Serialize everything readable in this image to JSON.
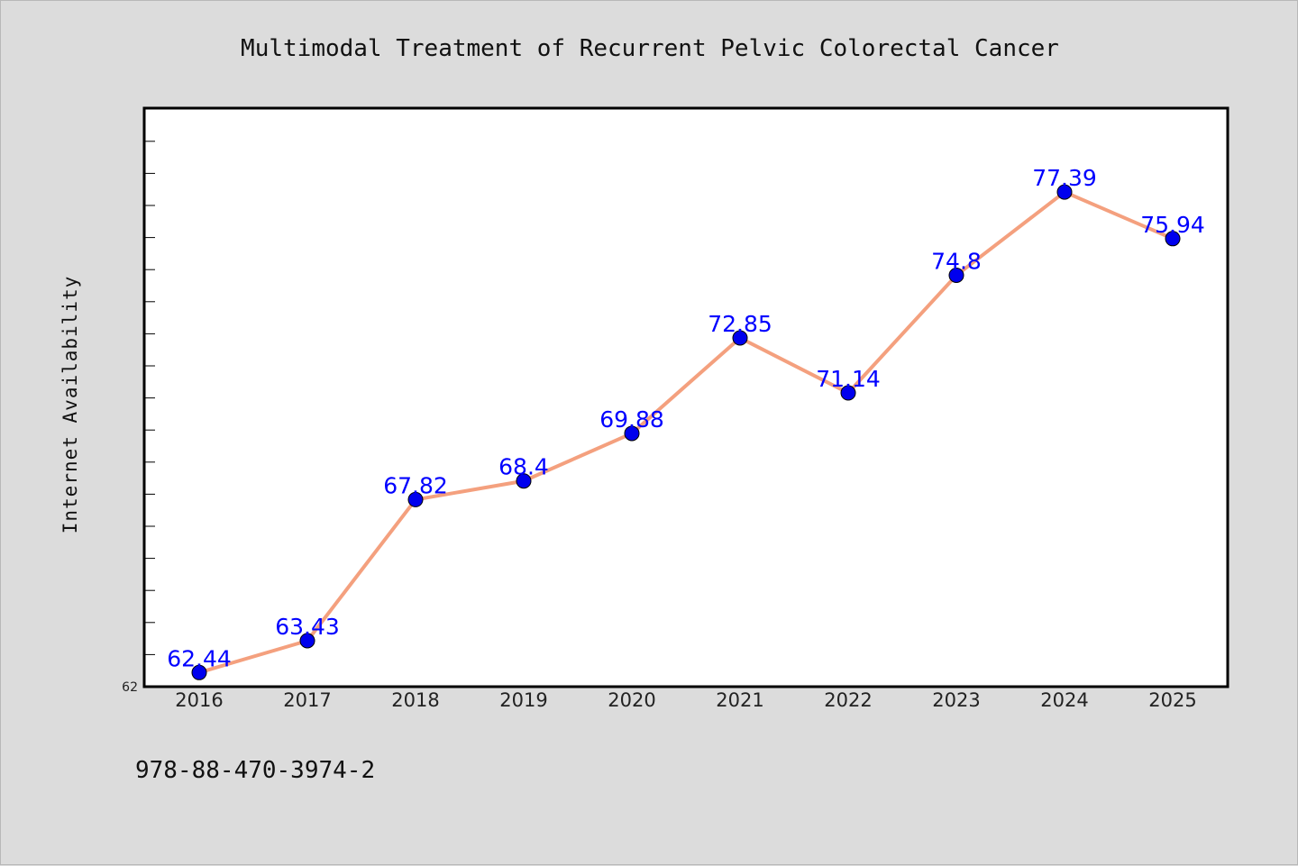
{
  "chart_data": {
    "type": "line",
    "title": "Multimodal Treatment of Recurrent Pelvic Colorectal Cancer",
    "xlabel": "",
    "ylabel": "Internet Availability",
    "categories": [
      "2016",
      "2017",
      "2018",
      "2019",
      "2020",
      "2021",
      "2022",
      "2023",
      "2024",
      "2025"
    ],
    "series": [
      {
        "values": [
          62.44,
          63.43,
          67.82,
          68.4,
          69.88,
          72.85,
          71.14,
          74.8,
          77.39,
          75.94
        ],
        "value_labels": [
          "62.44",
          "63.43",
          "67.82",
          "68.4",
          "69.88",
          "72.85",
          "71.14",
          "74.8",
          "77.39",
          "75.94"
        ],
        "line_color": "#f4a07e",
        "marker_color": "#0000ee"
      }
    ],
    "ylim": [
      62,
      80
    ],
    "y_tick_labels": [
      "62"
    ],
    "grid": false,
    "legend": "none"
  },
  "footer": {
    "isbn": "978-88-470-3974-2"
  },
  "colors": {
    "background": "#dcdcdc",
    "plot_background": "#ffffff",
    "label_color": "#0000ff"
  }
}
